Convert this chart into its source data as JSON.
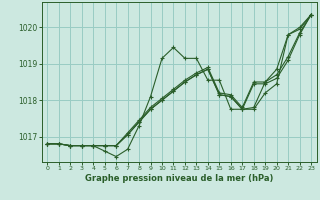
{
  "title": "Graphe pression niveau de la mer (hPa)",
  "bg_color": "#cce8e0",
  "grid_color": "#99ccc4",
  "line_color": "#2a5e2a",
  "xlim": [
    -0.5,
    23.5
  ],
  "ylim": [
    1016.3,
    1020.7
  ],
  "yticks": [
    1017,
    1018,
    1019,
    1020
  ],
  "xticks": [
    0,
    1,
    2,
    3,
    4,
    5,
    6,
    7,
    8,
    9,
    10,
    11,
    12,
    13,
    14,
    15,
    16,
    17,
    18,
    19,
    20,
    21,
    22,
    23
  ],
  "series": [
    [
      1016.8,
      1016.8,
      1016.75,
      1016.75,
      1016.75,
      1016.6,
      1016.45,
      1016.65,
      1017.3,
      1018.1,
      1019.15,
      1019.45,
      1019.15,
      1019.15,
      1018.55,
      1018.55,
      1017.75,
      1017.75,
      1017.8,
      1018.5,
      1018.85,
      1019.8,
      1020.0,
      1020.35
    ],
    [
      1016.8,
      1016.8,
      1016.75,
      1016.75,
      1016.75,
      1016.75,
      1016.75,
      1017.05,
      1017.4,
      1017.75,
      1018.0,
      1018.25,
      1018.5,
      1018.7,
      1018.85,
      1018.15,
      1018.1,
      1017.75,
      1017.75,
      1018.2,
      1018.45,
      1019.8,
      1019.95,
      1020.35
    ],
    [
      1016.8,
      1016.8,
      1016.75,
      1016.75,
      1016.75,
      1016.75,
      1016.75,
      1017.05,
      1017.4,
      1017.75,
      1018.0,
      1018.25,
      1018.5,
      1018.7,
      1018.85,
      1018.15,
      1018.1,
      1017.75,
      1018.45,
      1018.45,
      1018.6,
      1019.1,
      1019.8,
      1020.35
    ],
    [
      1016.8,
      1016.8,
      1016.75,
      1016.75,
      1016.75,
      1016.75,
      1016.75,
      1017.1,
      1017.45,
      1017.8,
      1018.05,
      1018.3,
      1018.55,
      1018.75,
      1018.9,
      1018.2,
      1018.15,
      1017.8,
      1018.5,
      1018.5,
      1018.7,
      1019.2,
      1019.85,
      1020.35
    ]
  ]
}
